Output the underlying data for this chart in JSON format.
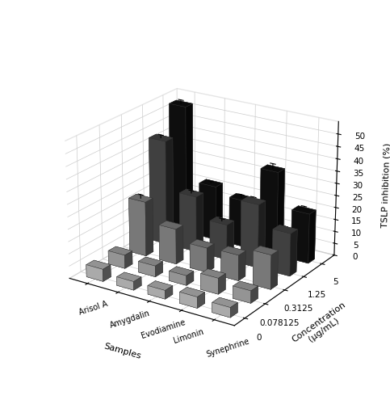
{
  "samples": [
    "Arisol A",
    "Amygdalin",
    "Evodiamine",
    "Limonin",
    "Synephrine"
  ],
  "concentrations": [
    "0",
    "0.078125",
    "0.3125",
    "1.25",
    "5"
  ],
  "values": [
    [
      5.0,
      5.5,
      22.5,
      43.0,
      53.0
    ],
    [
      3.5,
      4.5,
      14.5,
      23.0,
      22.5
    ],
    [
      3.5,
      4.0,
      10.0,
      14.5,
      19.5
    ],
    [
      4.5,
      6.5,
      10.5,
      26.0,
      34.5
    ],
    [
      4.0,
      5.0,
      14.0,
      17.5,
      20.5
    ]
  ],
  "errors": [
    [
      0.3,
      0.4,
      1.5,
      1.2,
      1.5
    ],
    [
      0.3,
      0.4,
      1.0,
      1.0,
      0.8
    ],
    [
      0.3,
      0.3,
      0.7,
      0.9,
      1.2
    ],
    [
      0.3,
      0.5,
      0.8,
      1.5,
      2.0
    ],
    [
      0.3,
      0.4,
      0.9,
      1.2,
      1.5
    ]
  ],
  "colors": [
    "#c0c0c0",
    "#a8a8a8",
    "#888888",
    "#484848",
    "#101010"
  ],
  "ylabel": "TSLP inhibition (%)",
  "xlabel": "Samples",
  "conc_label": "Concentration\n(μg/mL)",
  "zlim": [
    0,
    55
  ],
  "zticks": [
    0,
    5,
    10,
    15,
    20,
    25,
    30,
    35,
    40,
    45,
    50
  ],
  "elev": 22,
  "azim": -57,
  "bar_width": 0.55,
  "bar_depth": 0.35
}
